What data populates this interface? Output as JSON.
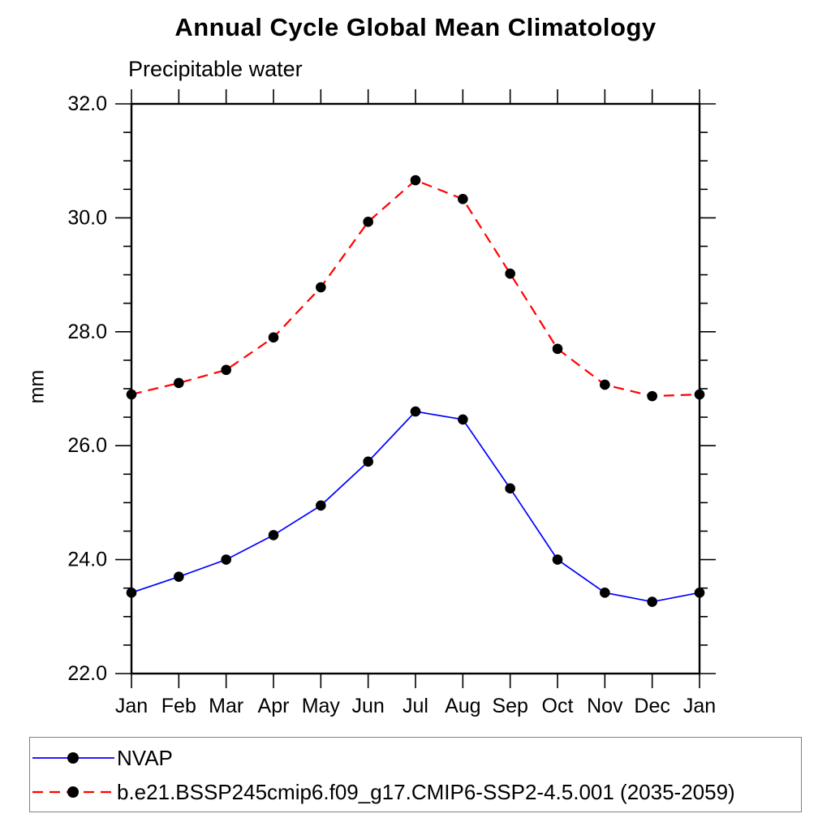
{
  "chart_data": {
    "type": "line",
    "title": "Annual Cycle Global Mean Climatology",
    "subtitle": "Precipitable water",
    "ylabel": "mm",
    "categories": [
      "Jan",
      "Feb",
      "Mar",
      "Apr",
      "May",
      "Jun",
      "Jul",
      "Aug",
      "Sep",
      "Oct",
      "Nov",
      "Dec",
      "Jan"
    ],
    "ylim": [
      22.0,
      32.0
    ],
    "y_major_ticks": [
      22.0,
      24.0,
      26.0,
      28.0,
      30.0,
      32.0
    ],
    "y_tick_labels": [
      "22.0",
      "24.0",
      "26.0",
      "28.0",
      "30.0",
      "32.0"
    ],
    "y_minor_step": 0.5,
    "grid": false,
    "legend_position": "bottom-left-box",
    "axis_color": "#000000",
    "marker_color": "#000000",
    "series": [
      {
        "name": "NVAP",
        "color": "#0000ff",
        "line_style": "solid",
        "marker": "filled-circle",
        "values": [
          23.42,
          23.7,
          24.0,
          24.43,
          24.95,
          25.72,
          26.6,
          26.46,
          25.25,
          24.0,
          23.42,
          23.26,
          23.42
        ]
      },
      {
        "name": "b.e21.BSSP245cmip6.f09_g17.CMIP6-SSP2-4.5.001 (2035-2059)",
        "color": "#ff0000",
        "line_style": "dashed",
        "marker": "filled-circle",
        "values": [
          26.9,
          27.1,
          27.33,
          27.9,
          28.78,
          29.93,
          30.66,
          30.33,
          29.02,
          27.7,
          27.07,
          26.87,
          26.9
        ]
      }
    ]
  }
}
